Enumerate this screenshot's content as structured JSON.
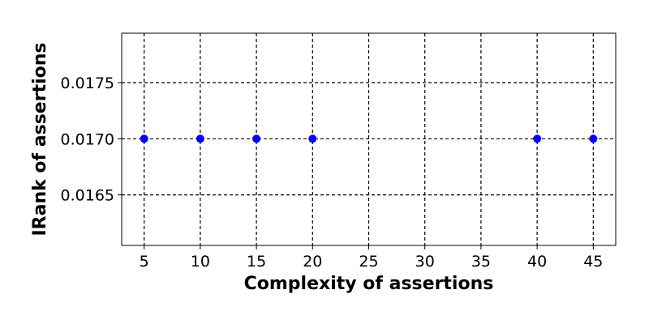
{
  "chart_data": {
    "type": "scatter",
    "title": "",
    "xlabel": "Complexity of assertions",
    "ylabel": "IRank of assertions",
    "x": [
      5,
      10,
      15,
      20,
      40,
      45
    ],
    "y": [
      0.017,
      0.017,
      0.017,
      0.017,
      0.017,
      0.017
    ],
    "xlim": [
      3,
      47
    ],
    "ylim": [
      0.01605,
      0.01794
    ],
    "xticks": [
      5,
      10,
      15,
      20,
      25,
      30,
      35,
      40,
      45
    ],
    "xtick_labels": [
      "5",
      "10",
      "15",
      "20",
      "25",
      "30",
      "35",
      "40",
      "45"
    ],
    "yticks": [
      0.0165,
      0.017,
      0.0175
    ],
    "ytick_labels": [
      "0.0165",
      "0.0170",
      "0.0175"
    ],
    "grid": true,
    "legend": "none",
    "marker_color": "#0000ff"
  }
}
